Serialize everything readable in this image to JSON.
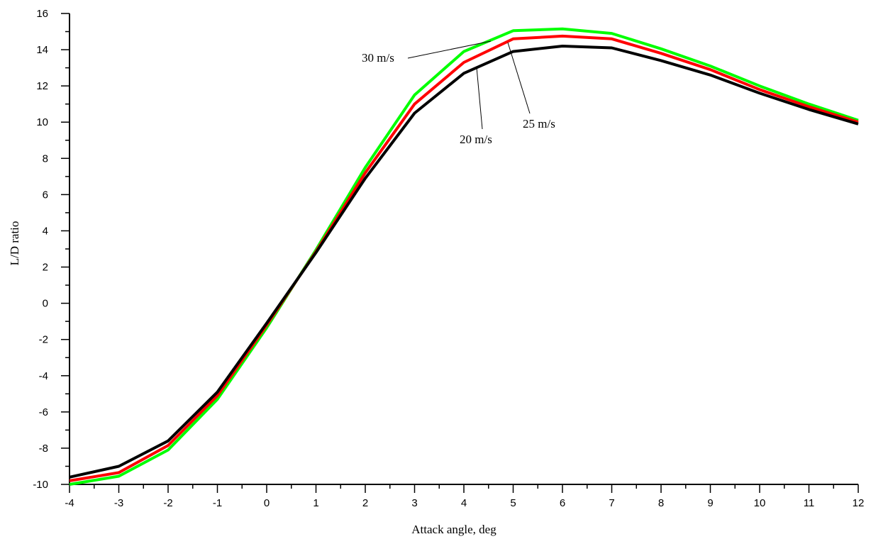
{
  "chart_data": {
    "type": "line",
    "xlabel": "Attack angle, deg",
    "ylabel": "L/D ratio",
    "xlim": [
      -4,
      12
    ],
    "ylim": [
      -10,
      16
    ],
    "xticks": [
      -4,
      -3,
      -2,
      -1,
      0,
      1,
      2,
      3,
      4,
      5,
      6,
      7,
      8,
      9,
      10,
      11,
      12
    ],
    "yticks": [
      -10,
      -8,
      -6,
      -4,
      -2,
      0,
      2,
      4,
      6,
      8,
      10,
      12,
      14,
      16
    ],
    "x": [
      -4,
      -3,
      -2,
      -1,
      0,
      1,
      2,
      3,
      4,
      5,
      6,
      7,
      8,
      9,
      10,
      11,
      12
    ],
    "grid": false,
    "legend": "none",
    "series": [
      {
        "name": "20 m/s",
        "color": "#000000",
        "values": [
          -9.6,
          -9.0,
          -7.6,
          -4.9,
          -1.1,
          2.8,
          6.9,
          10.5,
          12.7,
          13.9,
          14.2,
          14.1,
          13.4,
          12.6,
          11.6,
          10.7,
          9.9
        ]
      },
      {
        "name": "25 m/s",
        "color": "#ff0000",
        "values": [
          -9.8,
          -9.35,
          -7.85,
          -5.1,
          -1.2,
          2.85,
          7.2,
          11.0,
          13.3,
          14.6,
          14.75,
          14.6,
          13.8,
          12.9,
          11.8,
          10.85,
          10.0
        ]
      },
      {
        "name": "30 m/s",
        "color": "#00ff00",
        "values": [
          -10.0,
          -9.55,
          -8.1,
          -5.3,
          -1.35,
          2.95,
          7.5,
          11.5,
          13.9,
          15.05,
          15.15,
          14.9,
          14.05,
          13.1,
          12.0,
          11.0,
          10.1
        ]
      }
    ],
    "annotations": [
      {
        "text": "30 m/s",
        "series": "30 m/s"
      },
      {
        "text": "20 m/s",
        "series": "20 m/s"
      },
      {
        "text": "25 m/s",
        "series": "25 m/s"
      }
    ]
  }
}
